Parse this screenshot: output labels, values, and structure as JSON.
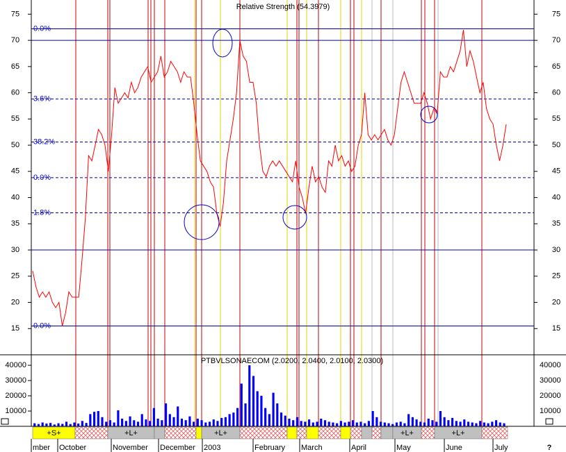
{
  "chart_data": [
    {
      "type": "line",
      "title": "Relative Strength (54.3979)",
      "color": "#ff0000",
      "ylim": [
        10,
        77.7
      ],
      "yticks": [
        15,
        20,
        25,
        30,
        35,
        40,
        45,
        50,
        55,
        60,
        65,
        70,
        75
      ],
      "levels": [
        {
          "value": 72.2,
          "label": "0.0%",
          "style": "solid"
        },
        {
          "value": 70,
          "style": "solid"
        },
        {
          "value": 58.8,
          "label": "3.6%",
          "style": "dashed"
        },
        {
          "value": 50.6,
          "label": "38.2%",
          "style": "dashed"
        },
        {
          "value": 43.8,
          "label": "0.0%",
          "style": "dashed"
        },
        {
          "value": 37.1,
          "label": "1.8%",
          "style": "dashed"
        },
        {
          "value": 30,
          "style": "solid"
        },
        {
          "value": 15.5,
          "label": "0.0%",
          "style": "solid"
        }
      ],
      "values": [
        26,
        23,
        21,
        22,
        21,
        22,
        20,
        19,
        20,
        15.5,
        18,
        22,
        21,
        21,
        21,
        28,
        36,
        48,
        47,
        50,
        53,
        52,
        50,
        45,
        52,
        61,
        58,
        59,
        60,
        59,
        62,
        60,
        61,
        63,
        64,
        65,
        62,
        63,
        64,
        67,
        63,
        64,
        66,
        65,
        64,
        62,
        64,
        63,
        63,
        58,
        52,
        47,
        46,
        45,
        43,
        42,
        37,
        34.5,
        39,
        47,
        51,
        55,
        60,
        70,
        67,
        66,
        62,
        62,
        58,
        50,
        45,
        44,
        46,
        47,
        46,
        47,
        46,
        45,
        44,
        43,
        47,
        42,
        40,
        37,
        42,
        46,
        43,
        44,
        42,
        41,
        47,
        46,
        50,
        47,
        48,
        46,
        47,
        45,
        46,
        50,
        52,
        60,
        52,
        51,
        52,
        51,
        52,
        53,
        51,
        50,
        52,
        57,
        62,
        64,
        62,
        60,
        58,
        58,
        58,
        60,
        58,
        55,
        57,
        56,
        64,
        63,
        63,
        65,
        64,
        66,
        68,
        72,
        65,
        68,
        66,
        63,
        60,
        62,
        57,
        55,
        54,
        50,
        47,
        50,
        54
      ]
    },
    {
      "type": "bar",
      "title": "PTBVLSONAECOM (2.0200, 2.0400, 2.0100, 2.0300)",
      "color": "#0000ff",
      "ylim": [
        0,
        45500
      ],
      "yticks": [
        10000,
        20000,
        30000,
        40000
      ],
      "values": [
        2000,
        1500,
        2500,
        1800,
        2200,
        1200,
        2000,
        1600,
        3000,
        1500,
        2500,
        1800,
        3500,
        2200,
        8000,
        9500,
        10000,
        6000,
        3000,
        4000,
        2500,
        10500,
        5000,
        3500,
        6500,
        4000,
        3000,
        8000,
        4500,
        3500,
        12000,
        5000,
        4000,
        15000,
        8000,
        6000,
        13000,
        5000,
        4000,
        6500,
        3000,
        5000,
        4000,
        2500,
        3000,
        4500,
        3500,
        5500,
        6000,
        8000,
        9000,
        12000,
        28000,
        15000,
        40000,
        33000,
        23000,
        20000,
        12000,
        8000,
        22000,
        15000,
        9000,
        7000,
        5000,
        4000,
        6000,
        3500,
        3000,
        4500,
        2500,
        3000,
        5000,
        4000,
        3000,
        2500,
        2000,
        3500,
        2500,
        3000,
        4000,
        2500,
        3000,
        2000,
        3500,
        10000,
        6000,
        3000,
        2500,
        2000,
        1500,
        2500,
        3000,
        2000,
        8000,
        6000,
        4500,
        3000,
        2500,
        5000,
        4000,
        3000,
        10000,
        6000,
        4000,
        5500,
        3500,
        3000,
        4500,
        3000,
        2500,
        2000,
        3500,
        2500,
        2000,
        3000,
        4000,
        2500,
        2000
      ]
    }
  ],
  "signal_band": [
    "+S+",
    "+L+",
    "+L+",
    "+L+",
    "+L+"
  ],
  "months": [
    "mber",
    "October",
    "November",
    "December",
    "2003",
    "February",
    "March",
    "April",
    "May",
    "June",
    "July"
  ],
  "corner": "?"
}
